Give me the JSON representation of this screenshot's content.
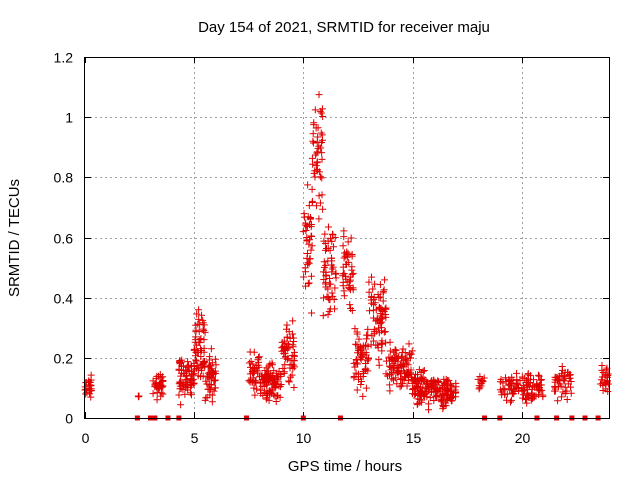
{
  "chart_data": {
    "type": "scatter",
    "title": "Day 154 of 2021, SRMTID for receiver maju",
    "xlabel": "GPS time / hours",
    "ylabel": "SRMTID / TECUs",
    "xlim": [
      0,
      24
    ],
    "ylim": [
      0,
      1.2
    ],
    "xticks": [
      0,
      5,
      10,
      15,
      20
    ],
    "yticks": [
      0,
      0.2,
      0.4,
      0.6,
      0.8,
      1,
      1.2
    ],
    "ytick_labels": [
      "0",
      "0.2",
      "0.4",
      "0.6",
      "0.8",
      "1",
      "1.2"
    ],
    "grid": true,
    "marker": "plus",
    "color": "#e00000",
    "zero_markers_x": [
      2.4,
      3.0,
      3.2,
      3.8,
      4.3,
      7.4,
      10.0,
      11.7,
      18.3,
      19.0,
      20.7,
      21.6,
      22.3,
      22.9,
      23.5
    ],
    "clusters": [
      {
        "x": [
          0.0,
          0.3
        ],
        "center": 0.11,
        "spread": 0.03,
        "n": 25
      },
      {
        "x": [
          2.4,
          2.5
        ],
        "center": 0.07,
        "spread": 0.01,
        "n": 3
      },
      {
        "x": [
          3.1,
          3.6
        ],
        "center": 0.11,
        "spread": 0.04,
        "n": 35
      },
      {
        "x": [
          4.3,
          5.0
        ],
        "center": 0.13,
        "spread": 0.06,
        "n": 70
      },
      {
        "x": [
          5.0,
          5.5
        ],
        "center": 0.23,
        "spread": 0.09,
        "n": 60
      },
      {
        "x": [
          5.5,
          6.0
        ],
        "center": 0.14,
        "spread": 0.07,
        "n": 50
      },
      {
        "x": [
          7.5,
          8.0
        ],
        "center": 0.15,
        "spread": 0.05,
        "n": 40
      },
      {
        "x": [
          8.0,
          9.0
        ],
        "center": 0.12,
        "spread": 0.05,
        "n": 90
      },
      {
        "x": [
          9.0,
          9.6
        ],
        "center": 0.22,
        "spread": 0.09,
        "n": 55
      },
      {
        "x": [
          10.0,
          10.4
        ],
        "center": 0.58,
        "spread": 0.14,
        "n": 40
      },
      {
        "x": [
          10.4,
          10.9
        ],
        "center": 0.85,
        "spread": 0.2,
        "n": 50
      },
      {
        "x": [
          10.9,
          11.5
        ],
        "center": 0.48,
        "spread": 0.15,
        "n": 55
      },
      {
        "x": [
          11.8,
          12.3
        ],
        "center": 0.5,
        "spread": 0.12,
        "n": 45
      },
      {
        "x": [
          12.3,
          13.0
        ],
        "center": 0.2,
        "spread": 0.08,
        "n": 60
      },
      {
        "x": [
          13.0,
          13.8
        ],
        "center": 0.32,
        "spread": 0.12,
        "n": 75
      },
      {
        "x": [
          13.8,
          15.0
        ],
        "center": 0.17,
        "spread": 0.06,
        "n": 100
      },
      {
        "x": [
          15.0,
          16.0
        ],
        "center": 0.1,
        "spread": 0.05,
        "n": 90
      },
      {
        "x": [
          16.0,
          17.0
        ],
        "center": 0.09,
        "spread": 0.04,
        "n": 80
      },
      {
        "x": [
          18.0,
          18.3
        ],
        "center": 0.12,
        "spread": 0.02,
        "n": 12
      },
      {
        "x": [
          19.0,
          21.0
        ],
        "center": 0.1,
        "spread": 0.04,
        "n": 110
      },
      {
        "x": [
          21.5,
          22.3
        ],
        "center": 0.12,
        "spread": 0.04,
        "n": 45
      },
      {
        "x": [
          23.6,
          24.0
        ],
        "center": 0.13,
        "spread": 0.04,
        "n": 25
      }
    ]
  }
}
